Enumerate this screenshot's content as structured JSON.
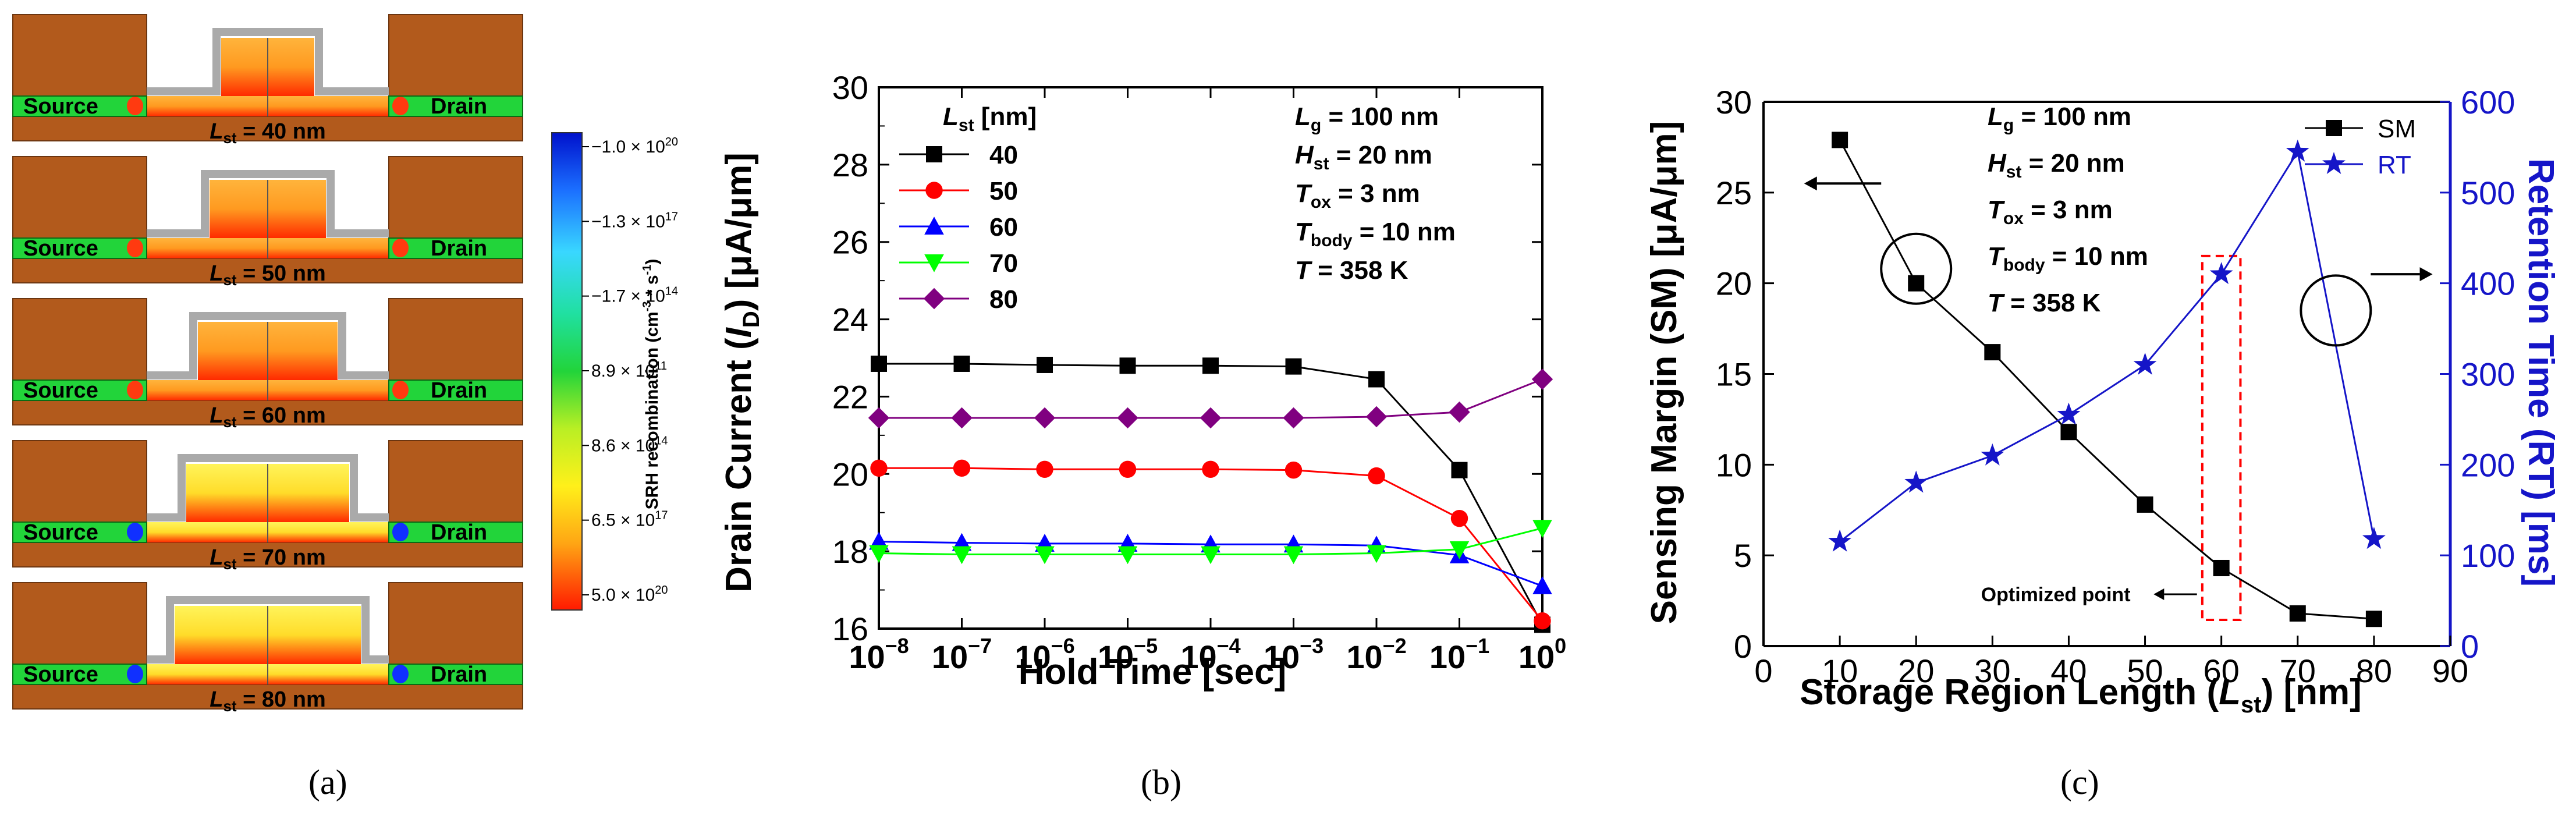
{
  "panels": {
    "a": {
      "caption": "(a)",
      "source_label": "Source",
      "drain_label": "Drain",
      "devices": [
        {
          "lst": "L",
          "sub": "st",
          "value": " = 40 nm",
          "hot": 0.15
        },
        {
          "lst": "L",
          "sub": "st",
          "value": " = 50 nm",
          "hot": 0.3
        },
        {
          "lst": "L",
          "sub": "st",
          "value": " = 60 nm",
          "hot": 0.5
        },
        {
          "lst": "L",
          "sub": "st",
          "value": " = 70 nm",
          "hot": 0.75
        },
        {
          "lst": "L",
          "sub": "st",
          "value": " = 80 nm",
          "hot": 0.9
        }
      ],
      "colorbar": {
        "title": "SRH recombination (cm",
        "title_sup": "-3",
        "title_mid": " * s",
        "title_sup2": "-1",
        "title_end": ")",
        "ticks": [
          {
            "mant": "−1.0 × 10",
            "exp": "20"
          },
          {
            "mant": "−1.3 × 10",
            "exp": "17"
          },
          {
            "mant": "−1.7 × 10",
            "exp": "14"
          },
          {
            "mant": "8.9 × 10",
            "exp": "11"
          },
          {
            "mant": "8.6 × 10",
            "exp": "14"
          },
          {
            "mant": "6.5 × 10",
            "exp": "17"
          },
          {
            "mant": "5.0 × 10",
            "exp": "20"
          }
        ]
      }
    },
    "b": {
      "caption": "(b)"
    },
    "c": {
      "caption": "(c)"
    }
  },
  "chart_data": [
    {
      "type": "line",
      "panel": "b",
      "title": "",
      "xlabel": "Hold Time [sec]",
      "ylabel": "Drain Current (I_D) [μA/μm]",
      "xscale": "log",
      "xlim": [
        1e-08,
        1
      ],
      "ylim": [
        16,
        30
      ],
      "x_exponents": [
        -8,
        -7,
        -6,
        -5,
        -4,
        -3,
        -2,
        -1,
        0
      ],
      "yticks": [
        16,
        18,
        20,
        22,
        24,
        26,
        28,
        30
      ],
      "legend_title": "L_st [nm]",
      "annotations": [
        "L_g = 100 nm",
        "H_st = 20 nm",
        "T_ox = 3 nm",
        "T_body = 10 nm",
        "T = 358 K"
      ],
      "series": [
        {
          "name": "40",
          "color": "#000000",
          "marker": "square",
          "x": [
            -8,
            -7,
            -6,
            -5,
            -4,
            -3,
            -2,
            -1,
            0
          ],
          "values": [
            22.85,
            22.85,
            22.82,
            22.8,
            22.8,
            22.78,
            22.45,
            20.1,
            16.1
          ]
        },
        {
          "name": "50",
          "color": "#ff0000",
          "marker": "circle",
          "x": [
            -8,
            -7,
            -6,
            -5,
            -4,
            -3,
            -2,
            -1,
            0
          ],
          "values": [
            20.15,
            20.15,
            20.12,
            20.12,
            20.12,
            20.1,
            19.95,
            18.85,
            16.2
          ]
        },
        {
          "name": "60",
          "color": "#0000ff",
          "marker": "triangle-up",
          "x": [
            -8,
            -7,
            -6,
            -5,
            -4,
            -3,
            -2,
            -1,
            0
          ],
          "values": [
            18.25,
            18.22,
            18.2,
            18.2,
            18.18,
            18.18,
            18.15,
            17.9,
            17.1
          ]
        },
        {
          "name": "70",
          "color": "#00ff00",
          "marker": "triangle-down",
          "x": [
            -8,
            -7,
            -6,
            -5,
            -4,
            -3,
            -2,
            -1,
            0
          ],
          "values": [
            17.95,
            17.92,
            17.92,
            17.92,
            17.92,
            17.92,
            17.95,
            18.05,
            18.6
          ]
        },
        {
          "name": "80",
          "color": "#800080",
          "marker": "diamond",
          "x": [
            -8,
            -7,
            -6,
            -5,
            -4,
            -3,
            -2,
            -1,
            0
          ],
          "values": [
            21.45,
            21.45,
            21.45,
            21.45,
            21.45,
            21.45,
            21.48,
            21.6,
            22.45
          ]
        }
      ]
    },
    {
      "type": "line",
      "panel": "c",
      "title": "",
      "xlabel": "Storage Region Length (L_st) [nm]",
      "ylabel": "Sensing Margin (SM) [μA/μm]",
      "y2label": "Retention Time (RT) [ms]",
      "xlim": [
        0,
        90
      ],
      "ylim": [
        0,
        30
      ],
      "y2lim": [
        0,
        600
      ],
      "xticks": [
        0,
        10,
        20,
        30,
        40,
        50,
        60,
        70,
        80,
        90
      ],
      "yticks": [
        0,
        5,
        10,
        15,
        20,
        25,
        30
      ],
      "y2ticks": [
        0,
        100,
        200,
        300,
        400,
        500,
        600
      ],
      "annotations": [
        "L_g = 100 nm",
        "H_st = 20 nm",
        "T_ox = 3 nm",
        "T_body = 10 nm",
        "T = 358 K",
        "Optimized point"
      ],
      "series": [
        {
          "name": "SM",
          "axis": "left",
          "color": "#000000",
          "marker": "square",
          "x": [
            10,
            20,
            30,
            40,
            50,
            60,
            70,
            80
          ],
          "values": [
            27.9,
            20.0,
            16.2,
            11.8,
            7.8,
            4.3,
            1.8,
            1.5
          ]
        },
        {
          "name": "RT",
          "axis": "right",
          "color": "#1515c8",
          "marker": "star",
          "x": [
            10,
            20,
            30,
            40,
            50,
            60,
            70,
            80
          ],
          "values": [
            115,
            180,
            210,
            255,
            310,
            410,
            545,
            118
          ]
        }
      ]
    }
  ],
  "text": {
    "b_ylabel_pre": "Drain Current (",
    "b_ylabel_I": "I",
    "b_ylabel_sub": "D",
    "b_ylabel_post": ") [μA/μm]",
    "b_xlabel": "Hold Time [sec]",
    "b_legend_L": "L",
    "b_legend_sub": "st",
    "b_legend_unit": " [nm]",
    "b_ann": [
      {
        "sym": "L",
        "sub": "g",
        "val": "  = 100 nm"
      },
      {
        "sym": "H",
        "sub": "st",
        "val": " = 20 nm"
      },
      {
        "sym": "T",
        "sub": "ox",
        "val": " = 3 nm"
      },
      {
        "sym": "T",
        "sub": "body",
        "val": " = 10 nm"
      },
      {
        "sym": "T",
        "sub": "",
        "val": "    = 358 K"
      }
    ],
    "c_ylabel": "Sensing Margin (SM) [μA/μm]",
    "c_y2label": "Retention Time (RT) [ms]",
    "c_xlabel_pre": "Storage Region Length (",
    "c_xlabel_L": "L",
    "c_xlabel_sub": "st",
    "c_xlabel_post": ") [nm]",
    "c_optimized": "Optimized point"
  },
  "colors": {
    "substrate": "#b25a1c",
    "oxide": "#d8d8d8",
    "source_drain": "#22d43a",
    "axis_blue": "#1515c8",
    "highlight_box": "#ff0000"
  }
}
